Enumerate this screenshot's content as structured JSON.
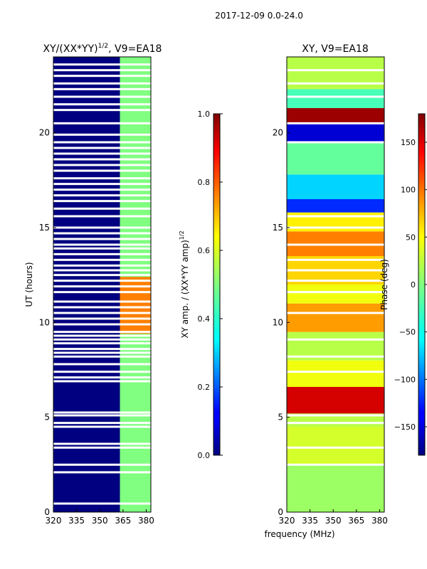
{
  "suptitle": "2017-12-09 0.0-24.0",
  "shared_xlabel": "frequency (MHz)",
  "chart_data": [
    {
      "type": "heatmap",
      "title": "XY/(XX*YY)",
      "title_exponent": "1/2",
      "title_suffix": ", V9=EA18",
      "xlabel": "",
      "ylabel": "UT (hours)",
      "xlim": [
        320,
        383
      ],
      "ylim": [
        0,
        24
      ],
      "xticks": [
        320,
        335,
        350,
        365,
        380
      ],
      "yticks": [
        0,
        5,
        10,
        15,
        20
      ],
      "colorbar": {
        "label": "XY amp. / (XX*YY amp)",
        "label_exponent": "1/2",
        "range": [
          0.0,
          1.0
        ],
        "ticks": [
          "0.0",
          "0.2",
          "0.4",
          "0.6",
          "0.8",
          "1.0"
        ],
        "tick_values": [
          0.0,
          0.2,
          0.4,
          0.6,
          0.8,
          1.0
        ]
      },
      "regions": [
        {
          "x": [
            320,
            363
          ],
          "t": [
            0,
            24
          ],
          "value": 0.0
        },
        {
          "x": [
            363,
            383
          ],
          "t": [
            0,
            24
          ],
          "value": 0.5
        },
        {
          "x": [
            363,
            383
          ],
          "t": [
            9.4,
            12.4
          ],
          "value": 0.75
        }
      ],
      "gaps_hours": [
        0.45,
        2.1,
        2.5,
        3.4,
        3.6,
        4.5,
        4.7,
        5.1,
        5.25,
        6.9,
        7.1,
        7.4,
        7.8,
        8.2,
        8.4,
        8.6,
        8.9,
        9.1,
        9.3,
        9.5,
        9.9,
        10.2,
        10.5,
        10.8,
        11.1,
        11.6,
        11.9,
        12.2,
        12.5,
        12.75,
        13.0,
        13.3,
        13.6,
        13.9,
        14.1,
        14.4,
        14.7,
        15.0,
        15.6,
        16.0,
        16.4,
        16.7,
        17.0,
        17.3,
        17.6,
        18.0,
        18.3,
        18.6,
        18.9,
        19.2,
        19.5,
        19.9,
        20.5,
        21.2,
        21.5,
        21.9,
        22.3,
        22.6,
        23.0,
        23.3,
        23.6
      ]
    },
    {
      "type": "heatmap",
      "title": "XY, V9=EA18",
      "xlabel": "frequency (MHz)",
      "ylabel": "",
      "xlim": [
        320,
        383
      ],
      "ylim": [
        0,
        24
      ],
      "xticks": [
        320,
        335,
        350,
        365,
        380
      ],
      "yticks": [
        0,
        5,
        10,
        15,
        20
      ],
      "colorbar": {
        "label": "Phase (deg)",
        "range": [
          -180,
          180
        ],
        "ticks": [
          "−150",
          "−100",
          "−50",
          "0",
          "50",
          "100",
          "150"
        ],
        "tick_values": [
          -150,
          -100,
          -50,
          0,
          50,
          100,
          150
        ]
      },
      "phase_bands": [
        {
          "t": [
            0,
            2.5
          ],
          "value": 10
        },
        {
          "t": [
            2.5,
            4.5
          ],
          "value": 30
        },
        {
          "t": [
            4.5,
            5.2
          ],
          "value": 20
        },
        {
          "t": [
            5.2,
            6.6
          ],
          "value": 150
        },
        {
          "t": [
            6.6,
            8.0
          ],
          "value": 40
        },
        {
          "t": [
            8.0,
            9.5
          ],
          "value": 20
        },
        {
          "t": [
            9.5,
            11.0
          ],
          "value": 80
        },
        {
          "t": [
            11.0,
            12.0
          ],
          "value": 40
        },
        {
          "t": [
            12.0,
            13.5
          ],
          "value": 60
        },
        {
          "t": [
            13.5,
            14.8
          ],
          "value": 90
        },
        {
          "t": [
            14.8,
            15.8
          ],
          "value": 50
        },
        {
          "t": [
            15.8,
            16.5
          ],
          "value": -120
        },
        {
          "t": [
            16.5,
            17.8
          ],
          "value": -60
        },
        {
          "t": [
            17.8,
            19.5
          ],
          "value": -10
        },
        {
          "t": [
            19.5,
            20.5
          ],
          "value": -150
        },
        {
          "t": [
            20.5,
            21.3
          ],
          "value": 170
        },
        {
          "t": [
            21.3,
            22.3
          ],
          "value": -20
        },
        {
          "t": [
            22.3,
            24.0
          ],
          "value": 20
        }
      ],
      "gaps_hours": [
        2.5,
        3.4,
        4.7,
        5.1,
        7.4,
        8.2,
        9.1,
        10.5,
        11.6,
        12.2,
        12.75,
        13.3,
        14.1,
        15.0,
        15.6,
        19.5,
        20.5,
        21.9,
        22.6,
        23.3
      ]
    }
  ]
}
